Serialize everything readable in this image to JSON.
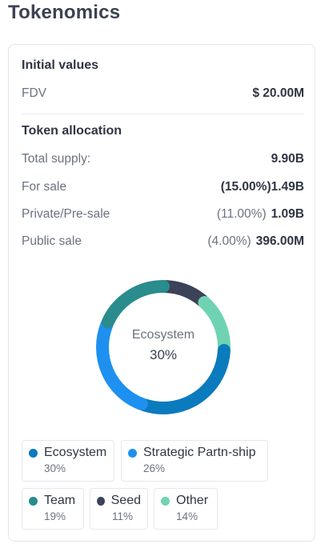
{
  "page": {
    "title": "Tokenomics"
  },
  "initial_values": {
    "heading": "Initial values",
    "fdv_label": "FDV",
    "fdv_value": "$ 20.00M"
  },
  "token_allocation": {
    "heading": "Token allocation",
    "rows": [
      {
        "label": "Total supply:",
        "pct": "",
        "value": "9.90B"
      },
      {
        "label": "For sale",
        "pct": "(15.00%)",
        "value": "1.49B"
      },
      {
        "label": "Private/Pre-sale",
        "pct": "(11.00%)",
        "value": "1.09B"
      },
      {
        "label": "Public sale",
        "pct": "(4.00%)",
        "value": "396.00M"
      }
    ]
  },
  "donut": {
    "center_label": "Ecosystem",
    "center_value": "30%"
  },
  "chart_data": {
    "type": "pie",
    "categories": [
      "Ecosystem",
      "Strategic Partn-ship",
      "Team",
      "Seed",
      "Other"
    ],
    "values": [
      30,
      26,
      19,
      11,
      14
    ],
    "value_labels": [
      "30%",
      "26%",
      "19%",
      "11%",
      "14%"
    ],
    "colors": [
      "#0a7bbd",
      "#1e90f0",
      "#2a8c8c",
      "#3c4258",
      "#6fd3b3"
    ],
    "style": "donut",
    "legend_position": "bottom"
  }
}
